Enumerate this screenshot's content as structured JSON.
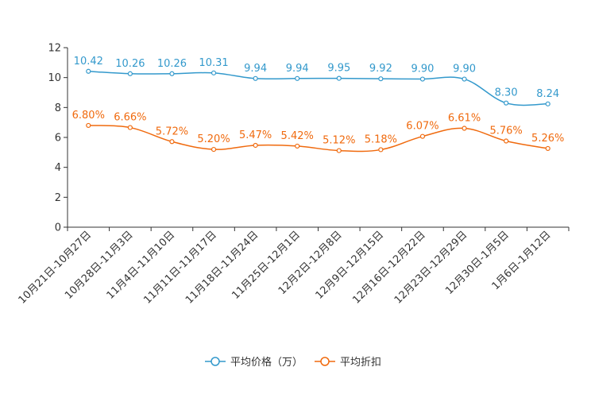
{
  "chart_data": {
    "type": "line",
    "categories": [
      "10月21日-10月27日",
      "10月28日-11月3日",
      "11月4日-11月10日",
      "11月11日-11月17日",
      "11月18日-11月24日",
      "11月25日-12月1日",
      "12月2日-12月8日",
      "12月9日-12月15日",
      "12月16日-12月22日",
      "12月23日-12月29日",
      "12月30日-1月5日",
      "1月6日-1月12日"
    ],
    "ylim": [
      0,
      12
    ],
    "yticks": [
      "0",
      "2",
      "4",
      "6",
      "8",
      "10",
      "12"
    ],
    "grid": false,
    "legend_position": "bottom",
    "series": [
      {
        "name": "平均价格（万）",
        "color": "#3399cc",
        "values": [
          10.42,
          10.26,
          10.26,
          10.31,
          9.94,
          9.94,
          9.95,
          9.92,
          9.9,
          9.9,
          8.3,
          8.24
        ],
        "labels": [
          "10.42",
          "10.26",
          "10.26",
          "10.31",
          "9.94",
          "9.94",
          "9.95",
          "9.92",
          "9.90",
          "9.90",
          "8.30",
          "8.24"
        ]
      },
      {
        "name": "平均折扣",
        "color": "#f06a0e",
        "values": [
          6.8,
          6.66,
          5.72,
          5.2,
          5.47,
          5.42,
          5.12,
          5.18,
          6.07,
          6.61,
          5.76,
          5.26
        ],
        "labels": [
          "6.80%",
          "6.66%",
          "5.72%",
          "5.20%",
          "5.47%",
          "5.42%",
          "5.12%",
          "5.18%",
          "6.07%",
          "6.61%",
          "5.76%",
          "5.26%"
        ]
      }
    ]
  }
}
